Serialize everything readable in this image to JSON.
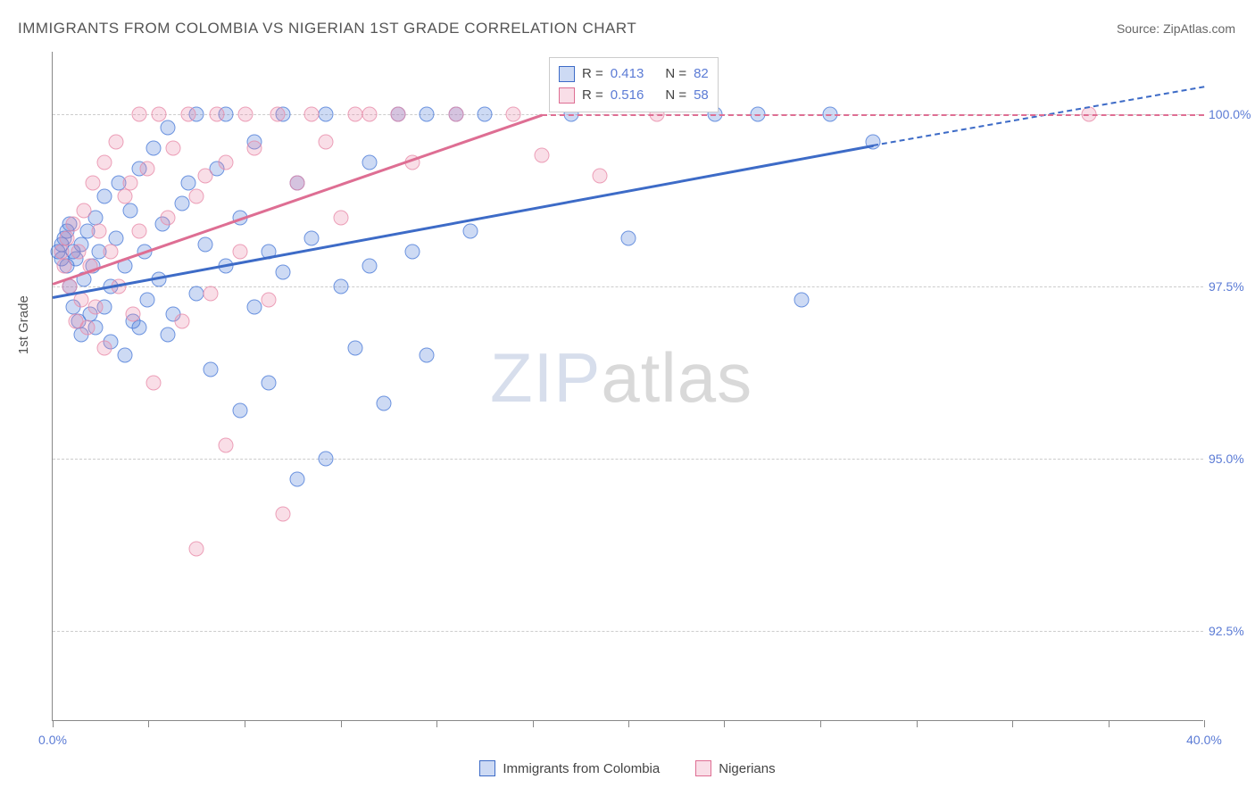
{
  "title": "IMMIGRANTS FROM COLOMBIA VS NIGERIAN 1ST GRADE CORRELATION CHART",
  "source_label": "Source:",
  "source_name": "ZipAtlas.com",
  "ylabel": "1st Grade",
  "watermark": {
    "part1": "ZIP",
    "part2": "atlas"
  },
  "chart": {
    "type": "scatter",
    "background_color": "#ffffff",
    "grid_color": "#cccccc",
    "axis_color": "#888888",
    "tick_label_color": "#5b7bd5",
    "tick_fontsize": 14,
    "title_fontsize": 17,
    "xlim": [
      0,
      40
    ],
    "ylim": [
      91.2,
      100.9
    ],
    "xtick_positions": [
      0,
      3.33,
      6.67,
      10,
      13.33,
      16.67,
      20,
      23.33,
      26.67,
      30,
      33.33,
      36.67,
      40
    ],
    "xtick_labels": {
      "0": "0.0%",
      "40": "40.0%"
    },
    "ytick_positions": [
      92.5,
      95.0,
      97.5,
      100.0
    ],
    "ytick_labels": [
      "92.5%",
      "95.0%",
      "97.5%",
      "100.0%"
    ],
    "marker_radius": 8.5,
    "marker_fill_opacity": 0.28,
    "marker_stroke_opacity": 0.75,
    "marker_stroke_width": 1.4,
    "series": [
      {
        "name": "Immigrants from Colombia",
        "color": "#4a7bd8",
        "stroke": "#3d6bc7",
        "R": "0.413",
        "N": "82",
        "trend": {
          "x1": 0,
          "y1": 97.35,
          "x2": 28.5,
          "y2": 99.55,
          "dash_to_x": 40,
          "dash_to_y": 100.4
        },
        "points": [
          [
            0.2,
            98.0
          ],
          [
            0.3,
            98.1
          ],
          [
            0.3,
            97.9
          ],
          [
            0.4,
            98.2
          ],
          [
            0.5,
            97.8
          ],
          [
            0.5,
            98.3
          ],
          [
            0.6,
            97.5
          ],
          [
            0.6,
            98.4
          ],
          [
            0.7,
            97.2
          ],
          [
            0.7,
            98.0
          ],
          [
            0.8,
            97.9
          ],
          [
            0.9,
            97.0
          ],
          [
            1.0,
            98.1
          ],
          [
            1.0,
            96.8
          ],
          [
            1.1,
            97.6
          ],
          [
            1.2,
            98.3
          ],
          [
            1.3,
            97.1
          ],
          [
            1.4,
            97.8
          ],
          [
            1.5,
            98.5
          ],
          [
            1.5,
            96.9
          ],
          [
            1.6,
            98.0
          ],
          [
            1.8,
            97.2
          ],
          [
            1.8,
            98.8
          ],
          [
            2.0,
            97.5
          ],
          [
            2.0,
            96.7
          ],
          [
            2.2,
            98.2
          ],
          [
            2.3,
            99.0
          ],
          [
            2.5,
            97.8
          ],
          [
            2.5,
            96.5
          ],
          [
            2.7,
            98.6
          ],
          [
            2.8,
            97.0
          ],
          [
            3.0,
            99.2
          ],
          [
            3.0,
            96.9
          ],
          [
            3.2,
            98.0
          ],
          [
            3.3,
            97.3
          ],
          [
            3.5,
            99.5
          ],
          [
            3.7,
            97.6
          ],
          [
            3.8,
            98.4
          ],
          [
            4.0,
            96.8
          ],
          [
            4.0,
            99.8
          ],
          [
            4.2,
            97.1
          ],
          [
            4.5,
            98.7
          ],
          [
            4.7,
            99.0
          ],
          [
            5.0,
            97.4
          ],
          [
            5.0,
            100.0
          ],
          [
            5.3,
            98.1
          ],
          [
            5.5,
            96.3
          ],
          [
            5.7,
            99.2
          ],
          [
            6.0,
            97.8
          ],
          [
            6.0,
            100.0
          ],
          [
            6.5,
            98.5
          ],
          [
            6.5,
            95.7
          ],
          [
            7.0,
            99.6
          ],
          [
            7.0,
            97.2
          ],
          [
            7.5,
            98.0
          ],
          [
            7.5,
            96.1
          ],
          [
            8.0,
            100.0
          ],
          [
            8.0,
            97.7
          ],
          [
            8.5,
            99.0
          ],
          [
            8.5,
            94.7
          ],
          [
            9.0,
            98.2
          ],
          [
            9.5,
            100.0
          ],
          [
            9.5,
            95.0
          ],
          [
            10.0,
            97.5
          ],
          [
            10.5,
            96.6
          ],
          [
            11.0,
            99.3
          ],
          [
            11.0,
            97.8
          ],
          [
            11.5,
            95.8
          ],
          [
            12.0,
            100.0
          ],
          [
            12.5,
            98.0
          ],
          [
            13.0,
            100.0
          ],
          [
            13.0,
            96.5
          ],
          [
            14.0,
            100.0
          ],
          [
            14.5,
            98.3
          ],
          [
            15.0,
            100.0
          ],
          [
            18.0,
            100.0
          ],
          [
            20.0,
            98.2
          ],
          [
            23.0,
            100.0
          ],
          [
            24.5,
            100.0
          ],
          [
            26.0,
            97.3
          ],
          [
            28.5,
            99.6
          ],
          [
            27.0,
            100.0
          ]
        ]
      },
      {
        "name": "Nigerians",
        "color": "#e88aa8",
        "stroke": "#de6e93",
        "R": "0.516",
        "N": "58",
        "trend": {
          "x1": 0,
          "y1": 97.55,
          "x2": 17.0,
          "y2": 100.0,
          "dash_to_x": 40,
          "dash_to_y": 100.0
        },
        "points": [
          [
            0.3,
            98.0
          ],
          [
            0.4,
            97.8
          ],
          [
            0.5,
            98.2
          ],
          [
            0.6,
            97.5
          ],
          [
            0.7,
            98.4
          ],
          [
            0.8,
            97.0
          ],
          [
            0.9,
            98.0
          ],
          [
            1.0,
            97.3
          ],
          [
            1.1,
            98.6
          ],
          [
            1.2,
            96.9
          ],
          [
            1.3,
            97.8
          ],
          [
            1.4,
            99.0
          ],
          [
            1.5,
            97.2
          ],
          [
            1.6,
            98.3
          ],
          [
            1.8,
            99.3
          ],
          [
            1.8,
            96.6
          ],
          [
            2.0,
            98.0
          ],
          [
            2.2,
            99.6
          ],
          [
            2.3,
            97.5
          ],
          [
            2.5,
            98.8
          ],
          [
            2.7,
            99.0
          ],
          [
            2.8,
            97.1
          ],
          [
            3.0,
            100.0
          ],
          [
            3.0,
            98.3
          ],
          [
            3.3,
            99.2
          ],
          [
            3.5,
            96.1
          ],
          [
            3.7,
            100.0
          ],
          [
            4.0,
            98.5
          ],
          [
            4.2,
            99.5
          ],
          [
            4.5,
            97.0
          ],
          [
            4.7,
            100.0
          ],
          [
            5.0,
            98.8
          ],
          [
            5.0,
            93.7
          ],
          [
            5.3,
            99.1
          ],
          [
            5.5,
            97.4
          ],
          [
            5.7,
            100.0
          ],
          [
            6.0,
            95.2
          ],
          [
            6.0,
            99.3
          ],
          [
            6.5,
            98.0
          ],
          [
            6.7,
            100.0
          ],
          [
            7.0,
            99.5
          ],
          [
            7.5,
            97.3
          ],
          [
            7.8,
            100.0
          ],
          [
            8.0,
            94.2
          ],
          [
            8.5,
            99.0
          ],
          [
            9.0,
            100.0
          ],
          [
            9.5,
            99.6
          ],
          [
            10.0,
            98.5
          ],
          [
            10.5,
            100.0
          ],
          [
            11.0,
            100.0
          ],
          [
            12.0,
            100.0
          ],
          [
            12.5,
            99.3
          ],
          [
            14.0,
            100.0
          ],
          [
            16.0,
            100.0
          ],
          [
            17.0,
            99.4
          ],
          [
            19.0,
            99.1
          ],
          [
            21.0,
            100.0
          ],
          [
            36.0,
            100.0
          ]
        ]
      }
    ]
  },
  "stats_box": {
    "rows": [
      {
        "swatch_fill": "rgba(74,123,216,0.28)",
        "swatch_stroke": "#3d6bc7",
        "r_label": "R =",
        "r_val": "0.413",
        "n_label": "N =",
        "n_val": "82"
      },
      {
        "swatch_fill": "rgba(232,138,168,0.28)",
        "swatch_stroke": "#de6e93",
        "r_label": "R =",
        "r_val": "0.516",
        "n_label": "N =",
        "n_val": "58"
      }
    ]
  },
  "legend": {
    "items": [
      {
        "fill": "rgba(74,123,216,0.28)",
        "stroke": "#3d6bc7",
        "label": "Immigrants from Colombia"
      },
      {
        "fill": "rgba(232,138,168,0.28)",
        "stroke": "#de6e93",
        "label": "Nigerians"
      }
    ]
  }
}
